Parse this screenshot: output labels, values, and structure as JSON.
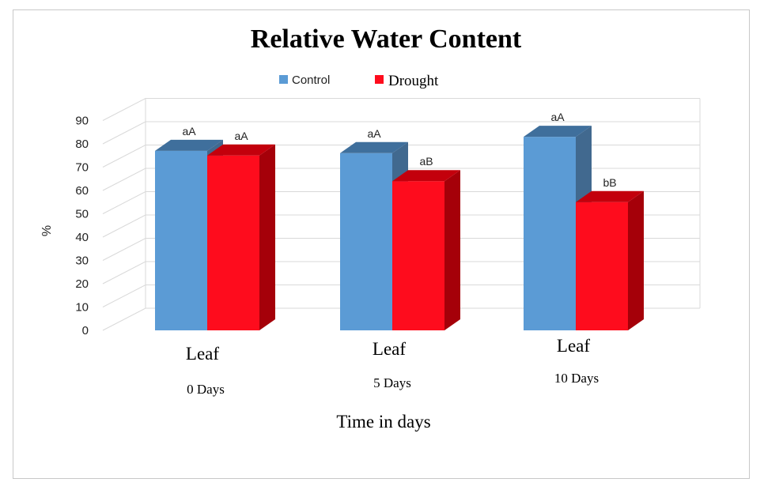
{
  "chart_data": {
    "type": "bar",
    "title": "Relative Water Content",
    "ylabel": "%",
    "xlabel": "Time in days",
    "ylim": [
      0,
      90
    ],
    "yticks": [
      0,
      10,
      20,
      30,
      40,
      50,
      60,
      70,
      80,
      90
    ],
    "grid": true,
    "legend_position": "top",
    "style": "3d-clustered-column",
    "categories": [
      {
        "line1": "Leaf",
        "line2": "0 Days"
      },
      {
        "line1": "Leaf",
        "line2": "5 Days"
      },
      {
        "line1": "Leaf",
        "line2": "10 Days"
      }
    ],
    "series": [
      {
        "name": "Control",
        "color": "#5b9bd5",
        "side_color": "#41698f",
        "top_color": "#3f6f9c",
        "values": [
          77,
          76,
          83
        ],
        "labels": [
          "aA",
          "aA",
          "aA"
        ]
      },
      {
        "name": "Drought",
        "color": "#fe0c1d",
        "side_color": "#a50009",
        "top_color": "#c3000c",
        "values": [
          75,
          64,
          55
        ],
        "labels": [
          "aA",
          "aB",
          "bB"
        ]
      }
    ]
  }
}
